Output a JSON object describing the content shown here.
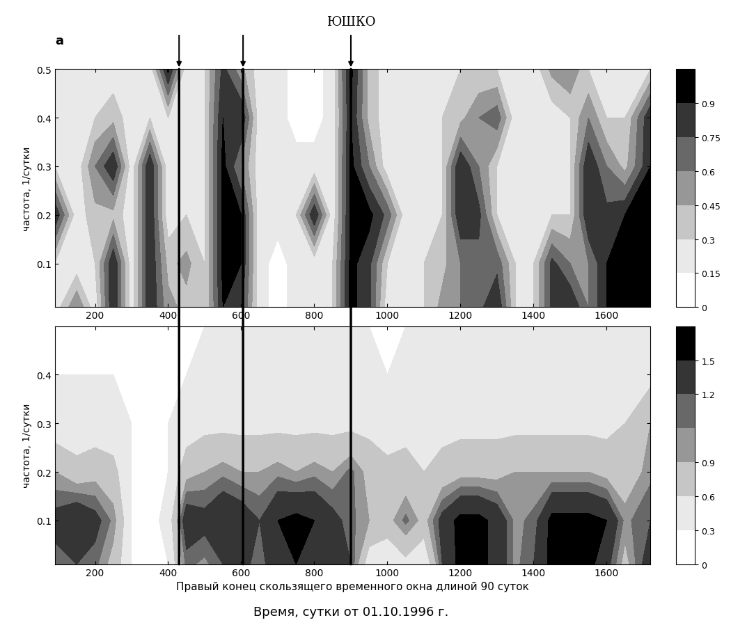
{
  "chart_data": [
    {
      "type": "contour",
      "title": "ЮШКО",
      "panel_label": "а",
      "ylabel": "частота, 1/сутки",
      "x": [
        90,
        150,
        200,
        250,
        300,
        350,
        400,
        450,
        500,
        550,
        600,
        650,
        700,
        750,
        800,
        850,
        900,
        950,
        1000,
        1050,
        1100,
        1150,
        1200,
        1250,
        1300,
        1350,
        1400,
        1450,
        1500,
        1550,
        1600,
        1650,
        1720
      ],
      "y": [
        0.01,
        0.1,
        0.2,
        0.3,
        0.4,
        0.5
      ],
      "cells": [
        [
          0.2,
          0.6,
          0.2,
          0.9,
          0.2,
          0.9,
          0.5,
          0.4,
          0.3,
          0.9,
          0.8,
          0.2,
          0.1,
          0.2,
          0.2,
          0.3,
          0.95,
          0.8,
          0.2,
          0.2,
          0.3,
          0.5,
          0.6,
          0.7,
          0.9,
          0.3,
          0.3,
          0.8,
          0.9,
          0.6,
          0.9,
          0.95,
          0.95
        ],
        [
          0.3,
          0.2,
          0.3,
          0.9,
          0.2,
          0.9,
          0.4,
          0.5,
          0.3,
          0.95,
          0.9,
          0.2,
          0.1,
          0.2,
          0.2,
          0.3,
          0.95,
          0.8,
          0.3,
          0.2,
          0.3,
          0.4,
          0.6,
          0.7,
          0.7,
          0.3,
          0.3,
          0.8,
          0.6,
          0.6,
          0.9,
          0.95,
          0.95
        ],
        [
          0.9,
          0.2,
          0.4,
          0.4,
          0.2,
          0.9,
          0.2,
          0.3,
          0.3,
          0.95,
          0.9,
          0.2,
          0.2,
          0.3,
          0.9,
          0.2,
          0.95,
          0.95,
          0.7,
          0.2,
          0.2,
          0.3,
          0.9,
          0.8,
          0.3,
          0.2,
          0.2,
          0.3,
          0.3,
          0.9,
          0.8,
          0.9,
          0.95
        ],
        [
          0.3,
          0.2,
          0.6,
          0.9,
          0.2,
          0.9,
          0.2,
          0.2,
          0.3,
          0.95,
          0.6,
          0.2,
          0.2,
          0.2,
          0.2,
          0.2,
          0.95,
          0.6,
          0.2,
          0.2,
          0.2,
          0.3,
          0.9,
          0.6,
          0.3,
          0.2,
          0.2,
          0.2,
          0.3,
          0.9,
          0.6,
          0.4,
          0.9
        ],
        [
          0.2,
          0.2,
          0.3,
          0.4,
          0.2,
          0.3,
          0.3,
          0.2,
          0.3,
          0.9,
          0.9,
          0.2,
          0.2,
          0.1,
          0.1,
          0.2,
          0.9,
          0.4,
          0.2,
          0.2,
          0.2,
          0.3,
          0.4,
          0.6,
          0.7,
          0.2,
          0.2,
          0.2,
          0.3,
          0.6,
          0.3,
          0.3,
          0.9
        ],
        [
          0.2,
          0.2,
          0.2,
          0.2,
          0.2,
          0.2,
          0.95,
          0.2,
          0.3,
          0.8,
          0.5,
          0.2,
          0.2,
          0.1,
          0.1,
          0.2,
          0.95,
          0.4,
          0.2,
          0.2,
          0.2,
          0.2,
          0.3,
          0.3,
          0.3,
          0.2,
          0.2,
          0.5,
          0.6,
          0.3,
          0.3,
          0.3,
          0.3
        ]
      ],
      "xlim": [
        90,
        1720
      ],
      "xticks": [
        200,
        400,
        600,
        800,
        1000,
        1200,
        1400,
        1600
      ],
      "ylim": [
        0.01,
        0.5
      ],
      "yticks": [
        0.1,
        0.2,
        0.3,
        0.4,
        0.5
      ],
      "colorbar_levels": [
        0,
        0.15,
        0.3,
        0.45,
        0.6,
        0.75,
        0.9,
        1.0
      ],
      "colorbar_ticks": [
        0,
        0.15,
        0.3,
        0.45,
        0.6,
        0.75,
        0.9
      ],
      "vertical_lines": [
        430,
        605,
        900
      ]
    },
    {
      "type": "contour",
      "ylabel": "частота, 1/сутки",
      "xlabel": "Правый конец скользящего временного окна длиной 90 суток",
      "caption": "Время, сутки от 01.10.1996 г.",
      "x": [
        90,
        150,
        200,
        250,
        300,
        350,
        400,
        450,
        500,
        550,
        600,
        650,
        700,
        750,
        800,
        850,
        900,
        950,
        1000,
        1050,
        1100,
        1150,
        1200,
        1250,
        1300,
        1350,
        1400,
        1450,
        1500,
        1550,
        1600,
        1650,
        1720
      ],
      "y": [
        0.01,
        0.1,
        0.2,
        0.3,
        0.4,
        0.5
      ],
      "cells": [
        [
          1.1,
          1.2,
          1.1,
          0.8,
          0.3,
          0.2,
          0.3,
          1.1,
          1.0,
          1.2,
          1.3,
          1.1,
          1.4,
          1.5,
          1.5,
          1.3,
          1.2,
          0.4,
          0.3,
          0.5,
          0.3,
          1.2,
          1.6,
          1.6,
          1.4,
          1.0,
          1.2,
          1.6,
          1.6,
          1.6,
          1.3,
          0.8,
          1.4
        ],
        [
          1.3,
          1.5,
          1.3,
          1.0,
          0.3,
          0.2,
          0.4,
          1.4,
          1.3,
          1.5,
          1.4,
          1.2,
          1.5,
          1.6,
          1.5,
          1.3,
          1.1,
          0.9,
          0.8,
          1.1,
          0.8,
          1.3,
          1.6,
          1.6,
          1.4,
          1.0,
          1.1,
          1.6,
          1.6,
          1.6,
          1.5,
          1.0,
          1.2
        ],
        [
          0.9,
          0.7,
          0.8,
          0.7,
          0.3,
          0.2,
          0.3,
          0.8,
          0.9,
          1.0,
          0.9,
          0.9,
          1.0,
          0.9,
          1.0,
          0.9,
          1.1,
          0.8,
          0.7,
          0.7,
          0.6,
          0.7,
          0.8,
          0.8,
          0.8,
          0.9,
          0.9,
          0.9,
          0.9,
          0.9,
          0.8,
          0.7,
          1.0
        ],
        [
          0.4,
          0.4,
          0.4,
          0.4,
          0.3,
          0.3,
          0.3,
          0.4,
          0.5,
          0.5,
          0.5,
          0.5,
          0.5,
          0.5,
          0.5,
          0.5,
          0.5,
          0.5,
          0.4,
          0.5,
          0.5,
          0.5,
          0.5,
          0.5,
          0.5,
          0.5,
          0.5,
          0.5,
          0.5,
          0.5,
          0.5,
          0.6,
          0.9
        ],
        [
          0.3,
          0.3,
          0.3,
          0.3,
          0.3,
          0.3,
          0.3,
          0.3,
          0.4,
          0.4,
          0.4,
          0.4,
          0.4,
          0.4,
          0.4,
          0.4,
          0.4,
          0.4,
          0.3,
          0.4,
          0.4,
          0.4,
          0.4,
          0.4,
          0.4,
          0.4,
          0.4,
          0.4,
          0.4,
          0.4,
          0.4,
          0.4,
          0.5
        ],
        [
          0.2,
          0.2,
          0.2,
          0.2,
          0.2,
          0.2,
          0.2,
          0.2,
          0.3,
          0.3,
          0.3,
          0.3,
          0.3,
          0.3,
          0.3,
          0.3,
          0.3,
          0.3,
          0.2,
          0.3,
          0.3,
          0.3,
          0.3,
          0.3,
          0.3,
          0.3,
          0.3,
          0.3,
          0.3,
          0.3,
          0.3,
          0.3,
          0.3
        ]
      ],
      "xlim": [
        90,
        1720
      ],
      "xticks": [
        200,
        400,
        600,
        800,
        1000,
        1200,
        1400,
        1600
      ],
      "ylim": [
        0.01,
        0.5
      ],
      "yticks": [
        0.1,
        0.2,
        0.3,
        0.4
      ],
      "colorbar_levels": [
        0,
        0.3,
        0.6,
        0.9,
        1.05,
        1.2,
        1.5,
        1.7
      ],
      "colorbar_ticks": [
        0,
        0.3,
        0.6,
        0.9,
        1.2,
        1.5
      ],
      "vertical_lines": [
        430,
        605,
        900
      ]
    }
  ]
}
